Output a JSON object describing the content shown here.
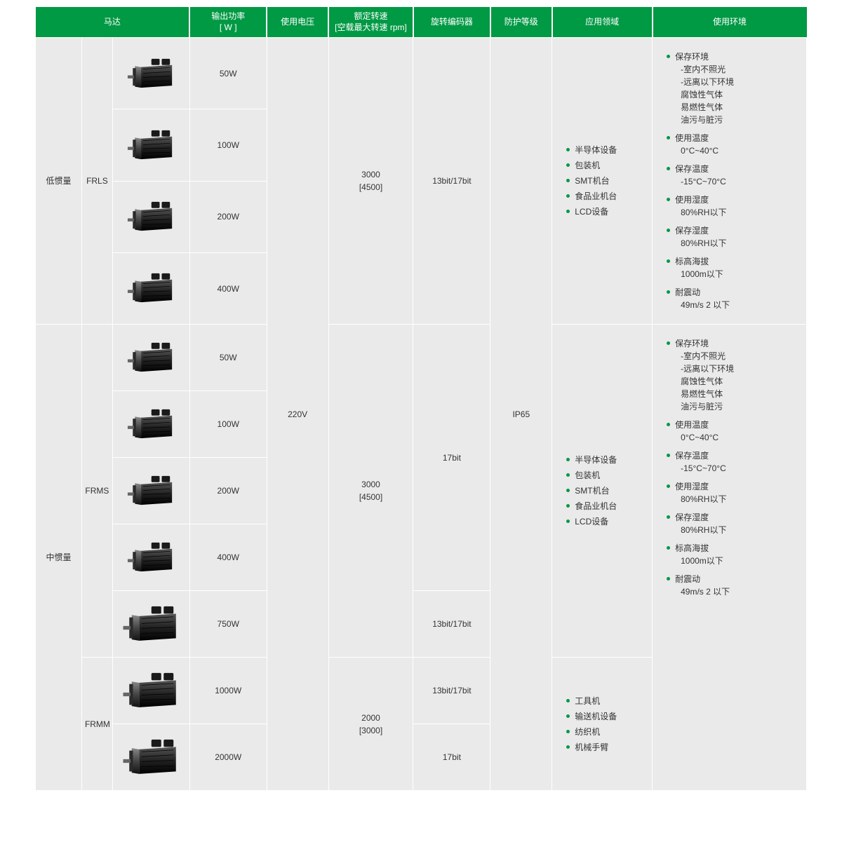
{
  "colors": {
    "header_bg": "#009944",
    "header_text": "#ffffff",
    "cell_bg": "#eaeaea",
    "cell_text": "#333333",
    "border": "#ffffff",
    "bullet": "#009944"
  },
  "layout": {
    "col_widths_pct": [
      6,
      4,
      10,
      10,
      8,
      11,
      10,
      8,
      13,
      20
    ],
    "header_fontsize": 12,
    "cell_fontsize": 12
  },
  "headers": {
    "motor": "马达",
    "power": "输出功率\n[ W ]",
    "voltage": "使用电压",
    "speed": "额定转速\n[空载最大转速 rpm]",
    "encoder": "旋转编码器",
    "ip": "防护等级",
    "application": "应用领域",
    "environment": "使用环境"
  },
  "groups": [
    {
      "inertia": "低惯量",
      "series": [
        {
          "code": "FRLS",
          "speed": "3000\n[4500]",
          "encoder_rows": [
            {
              "encoder": "13bit/17bit",
              "watts": [
                "50W",
                "100W",
                "200W",
                "400W"
              ]
            }
          ],
          "applications": [
            "半导体设备",
            "包装机",
            "SMT机台",
            "食品业机台",
            "LCD设备"
          ]
        }
      ]
    },
    {
      "inertia": "中惯量",
      "series": [
        {
          "code": "FRMS",
          "speed": "3000\n[4500]",
          "encoder_rows": [
            {
              "encoder": "17bit",
              "watts": [
                "50W",
                "100W",
                "200W",
                "400W"
              ]
            },
            {
              "encoder": "13bit/17bit",
              "watts": [
                "750W"
              ]
            }
          ],
          "applications": [
            "半导体设备",
            "包装机",
            "SMT机台",
            "食品业机台",
            "LCD设备"
          ]
        },
        {
          "code": "FRMM",
          "speed": "2000\n[3000]",
          "encoder_rows": [
            {
              "encoder": "13bit/17bit",
              "watts": [
                "1000W"
              ]
            },
            {
              "encoder": "17bit",
              "watts": [
                "2000W"
              ]
            }
          ],
          "applications": [
            "工具机",
            "输送机设备",
            "纺织机",
            "机械手臂"
          ]
        }
      ]
    }
  ],
  "voltage": "220V",
  "ip": "IP65",
  "environment": [
    {
      "title": "保存环境",
      "subs": [
        "-室内不照光",
        "-远离以下环境",
        "  腐蚀性气体",
        "  易燃性气体",
        "  油污与脏污"
      ]
    },
    {
      "title": "使用温度",
      "subs": [
        "0°C~40°C"
      ]
    },
    {
      "title": "保存温度",
      "subs": [
        "-15°C~70°C"
      ]
    },
    {
      "title": "使用湿度",
      "subs": [
        "80%RH以下"
      ]
    },
    {
      "title": "保存湿度",
      "subs": [
        "80%RH以下"
      ]
    },
    {
      "title": "标高海拔",
      "subs": [
        "1000m以下"
      ]
    },
    {
      "title": "耐震动",
      "subs": [
        "49m/s 2 以下"
      ]
    }
  ]
}
